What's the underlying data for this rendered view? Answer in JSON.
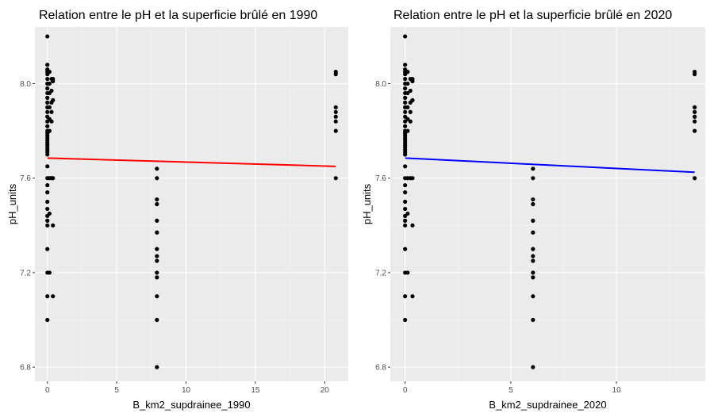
{
  "colors": {
    "panel_background": "#ebebeb",
    "grid_major": "#ffffff",
    "grid_minor": "#f5f5f5",
    "points": "#000000",
    "tick_label": "#4d4d4d",
    "axis_tick": "#333333"
  },
  "chart_data": [
    {
      "type": "scatter",
      "title": "Relation entre le pH et la superficie brûlé en 1990",
      "xlabel": "B_km2_supdrainee_1990",
      "ylabel": "pH_units",
      "xlim": [
        -0.9,
        21.7
      ],
      "ylim": [
        6.74,
        8.24
      ],
      "xticks": [
        0,
        5,
        10,
        15,
        20
      ],
      "xtick_labels": [
        "0",
        "5",
        "10",
        "15",
        "20"
      ],
      "yticks": [
        6.8,
        7.2,
        7.6,
        8.0
      ],
      "ytick_labels": [
        "6.8",
        "7.2",
        "7.6",
        "8.0"
      ],
      "grid": true,
      "trend_line": {
        "color": "#ff0000",
        "x": [
          0,
          20.8
        ],
        "y": [
          7.685,
          7.65
        ]
      },
      "points": [
        {
          "x": 0,
          "y": 8.2
        },
        {
          "x": 0,
          "y": 8.08
        },
        {
          "x": 0,
          "y": 8.06
        },
        {
          "x": 0,
          "y": 8.05
        },
        {
          "x": 0,
          "y": 8.04
        },
        {
          "x": 0,
          "y": 8.02
        },
        {
          "x": 0,
          "y": 8.0
        },
        {
          "x": 0,
          "y": 7.98
        },
        {
          "x": 0,
          "y": 7.96
        },
        {
          "x": 0,
          "y": 7.94
        },
        {
          "x": 0,
          "y": 7.92
        },
        {
          "x": 0,
          "y": 7.9
        },
        {
          "x": 0,
          "y": 7.88
        },
        {
          "x": 0,
          "y": 7.86
        },
        {
          "x": 0,
          "y": 7.84
        },
        {
          "x": 0,
          "y": 7.82
        },
        {
          "x": 0,
          "y": 7.8
        },
        {
          "x": 0,
          "y": 7.79
        },
        {
          "x": 0,
          "y": 7.78
        },
        {
          "x": 0,
          "y": 7.77
        },
        {
          "x": 0,
          "y": 7.76
        },
        {
          "x": 0,
          "y": 7.75
        },
        {
          "x": 0,
          "y": 7.74
        },
        {
          "x": 0,
          "y": 7.73
        },
        {
          "x": 0,
          "y": 7.72
        },
        {
          "x": 0,
          "y": 7.71
        },
        {
          "x": 0,
          "y": 7.7
        },
        {
          "x": 0,
          "y": 7.65
        },
        {
          "x": 0,
          "y": 7.6
        },
        {
          "x": 0,
          "y": 7.57
        },
        {
          "x": 0,
          "y": 7.54
        },
        {
          "x": 0,
          "y": 7.5
        },
        {
          "x": 0,
          "y": 7.47
        },
        {
          "x": 0,
          "y": 7.44
        },
        {
          "x": 0,
          "y": 7.42
        },
        {
          "x": 0,
          "y": 7.4
        },
        {
          "x": 0,
          "y": 7.3
        },
        {
          "x": 0,
          "y": 7.2
        },
        {
          "x": 0,
          "y": 7.1
        },
        {
          "x": 0,
          "y": 7.0
        },
        {
          "x": 0.15,
          "y": 8.05
        },
        {
          "x": 0.15,
          "y": 8.0
        },
        {
          "x": 0.15,
          "y": 7.96
        },
        {
          "x": 0.15,
          "y": 7.9
        },
        {
          "x": 0.15,
          "y": 7.85
        },
        {
          "x": 0.15,
          "y": 7.8
        },
        {
          "x": 0.15,
          "y": 7.6
        },
        {
          "x": 0.15,
          "y": 7.45
        },
        {
          "x": 0.15,
          "y": 7.2
        },
        {
          "x": 0.3,
          "y": 8.02
        },
        {
          "x": 0.3,
          "y": 7.97
        },
        {
          "x": 0.3,
          "y": 7.92
        },
        {
          "x": 0.3,
          "y": 7.88
        },
        {
          "x": 0.3,
          "y": 7.84
        },
        {
          "x": 0.3,
          "y": 7.6
        },
        {
          "x": 0.4,
          "y": 8.02
        },
        {
          "x": 0.4,
          "y": 8.01
        },
        {
          "x": 0.4,
          "y": 7.93
        },
        {
          "x": 0.4,
          "y": 7.6
        },
        {
          "x": 0.4,
          "y": 7.4
        },
        {
          "x": 0.4,
          "y": 7.1
        },
        {
          "x": 7.9,
          "y": 7.64
        },
        {
          "x": 7.9,
          "y": 7.6
        },
        {
          "x": 7.9,
          "y": 7.51
        },
        {
          "x": 7.9,
          "y": 7.49
        },
        {
          "x": 7.9,
          "y": 7.42
        },
        {
          "x": 7.9,
          "y": 7.37
        },
        {
          "x": 7.9,
          "y": 7.3
        },
        {
          "x": 7.9,
          "y": 7.27
        },
        {
          "x": 7.9,
          "y": 7.25
        },
        {
          "x": 7.9,
          "y": 7.2
        },
        {
          "x": 7.9,
          "y": 7.18
        },
        {
          "x": 7.9,
          "y": 7.1
        },
        {
          "x": 7.9,
          "y": 7.0
        },
        {
          "x": 7.9,
          "y": 6.8
        },
        {
          "x": 20.8,
          "y": 8.05
        },
        {
          "x": 20.8,
          "y": 8.04
        },
        {
          "x": 20.8,
          "y": 7.9
        },
        {
          "x": 20.8,
          "y": 7.88
        },
        {
          "x": 20.8,
          "y": 7.86
        },
        {
          "x": 20.8,
          "y": 7.84
        },
        {
          "x": 20.8,
          "y": 7.8
        },
        {
          "x": 20.8,
          "y": 7.6
        }
      ]
    },
    {
      "type": "scatter",
      "title": "Relation entre le pH et la superficie brûlé en 2020",
      "xlabel": "B_km2_supdrainee_2020",
      "ylabel": "pH_units",
      "xlim": [
        -0.7,
        14.2
      ],
      "ylim": [
        6.74,
        8.24
      ],
      "xticks": [
        0,
        5,
        10
      ],
      "xtick_labels": [
        "0",
        "5",
        "10"
      ],
      "yticks": [
        6.8,
        7.2,
        7.6,
        8.0
      ],
      "ytick_labels": [
        "6.8",
        "7.2",
        "7.6",
        "8.0"
      ],
      "grid": true,
      "trend_line": {
        "color": "#0000ff",
        "x": [
          0,
          13.7
        ],
        "y": [
          7.685,
          7.625
        ]
      },
      "points": [
        {
          "x": 0,
          "y": 8.2
        },
        {
          "x": 0,
          "y": 8.08
        },
        {
          "x": 0,
          "y": 8.06
        },
        {
          "x": 0,
          "y": 8.05
        },
        {
          "x": 0,
          "y": 8.04
        },
        {
          "x": 0,
          "y": 8.02
        },
        {
          "x": 0,
          "y": 8.0
        },
        {
          "x": 0,
          "y": 7.98
        },
        {
          "x": 0,
          "y": 7.96
        },
        {
          "x": 0,
          "y": 7.94
        },
        {
          "x": 0,
          "y": 7.92
        },
        {
          "x": 0,
          "y": 7.9
        },
        {
          "x": 0,
          "y": 7.88
        },
        {
          "x": 0,
          "y": 7.86
        },
        {
          "x": 0,
          "y": 7.84
        },
        {
          "x": 0,
          "y": 7.82
        },
        {
          "x": 0,
          "y": 7.8
        },
        {
          "x": 0,
          "y": 7.79
        },
        {
          "x": 0,
          "y": 7.78
        },
        {
          "x": 0,
          "y": 7.77
        },
        {
          "x": 0,
          "y": 7.76
        },
        {
          "x": 0,
          "y": 7.75
        },
        {
          "x": 0,
          "y": 7.74
        },
        {
          "x": 0,
          "y": 7.73
        },
        {
          "x": 0,
          "y": 7.72
        },
        {
          "x": 0,
          "y": 7.71
        },
        {
          "x": 0,
          "y": 7.7
        },
        {
          "x": 0,
          "y": 7.65
        },
        {
          "x": 0,
          "y": 7.6
        },
        {
          "x": 0,
          "y": 7.57
        },
        {
          "x": 0,
          "y": 7.54
        },
        {
          "x": 0,
          "y": 7.5
        },
        {
          "x": 0,
          "y": 7.47
        },
        {
          "x": 0,
          "y": 7.44
        },
        {
          "x": 0,
          "y": 7.42
        },
        {
          "x": 0,
          "y": 7.4
        },
        {
          "x": 0,
          "y": 7.3
        },
        {
          "x": 0,
          "y": 7.2
        },
        {
          "x": 0,
          "y": 7.1
        },
        {
          "x": 0,
          "y": 7.0
        },
        {
          "x": 0.12,
          "y": 8.05
        },
        {
          "x": 0.12,
          "y": 8.0
        },
        {
          "x": 0.12,
          "y": 7.96
        },
        {
          "x": 0.12,
          "y": 7.9
        },
        {
          "x": 0.12,
          "y": 7.85
        },
        {
          "x": 0.12,
          "y": 7.8
        },
        {
          "x": 0.12,
          "y": 7.6
        },
        {
          "x": 0.12,
          "y": 7.45
        },
        {
          "x": 0.12,
          "y": 7.2
        },
        {
          "x": 0.25,
          "y": 8.02
        },
        {
          "x": 0.25,
          "y": 7.97
        },
        {
          "x": 0.25,
          "y": 7.92
        },
        {
          "x": 0.25,
          "y": 7.88
        },
        {
          "x": 0.25,
          "y": 7.84
        },
        {
          "x": 0.25,
          "y": 7.6
        },
        {
          "x": 0.35,
          "y": 8.02
        },
        {
          "x": 0.35,
          "y": 8.01
        },
        {
          "x": 0.35,
          "y": 7.93
        },
        {
          "x": 0.35,
          "y": 7.6
        },
        {
          "x": 0.35,
          "y": 7.4
        },
        {
          "x": 0.35,
          "y": 7.1
        },
        {
          "x": 6.05,
          "y": 7.64
        },
        {
          "x": 6.05,
          "y": 7.6
        },
        {
          "x": 6.05,
          "y": 7.51
        },
        {
          "x": 6.05,
          "y": 7.49
        },
        {
          "x": 6.05,
          "y": 7.42
        },
        {
          "x": 6.05,
          "y": 7.37
        },
        {
          "x": 6.05,
          "y": 7.3
        },
        {
          "x": 6.05,
          "y": 7.27
        },
        {
          "x": 6.05,
          "y": 7.25
        },
        {
          "x": 6.05,
          "y": 7.2
        },
        {
          "x": 6.05,
          "y": 7.18
        },
        {
          "x": 6.05,
          "y": 7.1
        },
        {
          "x": 6.05,
          "y": 7.0
        },
        {
          "x": 6.05,
          "y": 6.8
        },
        {
          "x": 13.7,
          "y": 8.05
        },
        {
          "x": 13.7,
          "y": 8.04
        },
        {
          "x": 13.7,
          "y": 7.9
        },
        {
          "x": 13.7,
          "y": 7.88
        },
        {
          "x": 13.7,
          "y": 7.86
        },
        {
          "x": 13.7,
          "y": 7.84
        },
        {
          "x": 13.7,
          "y": 7.8
        },
        {
          "x": 13.7,
          "y": 7.6
        }
      ]
    }
  ]
}
